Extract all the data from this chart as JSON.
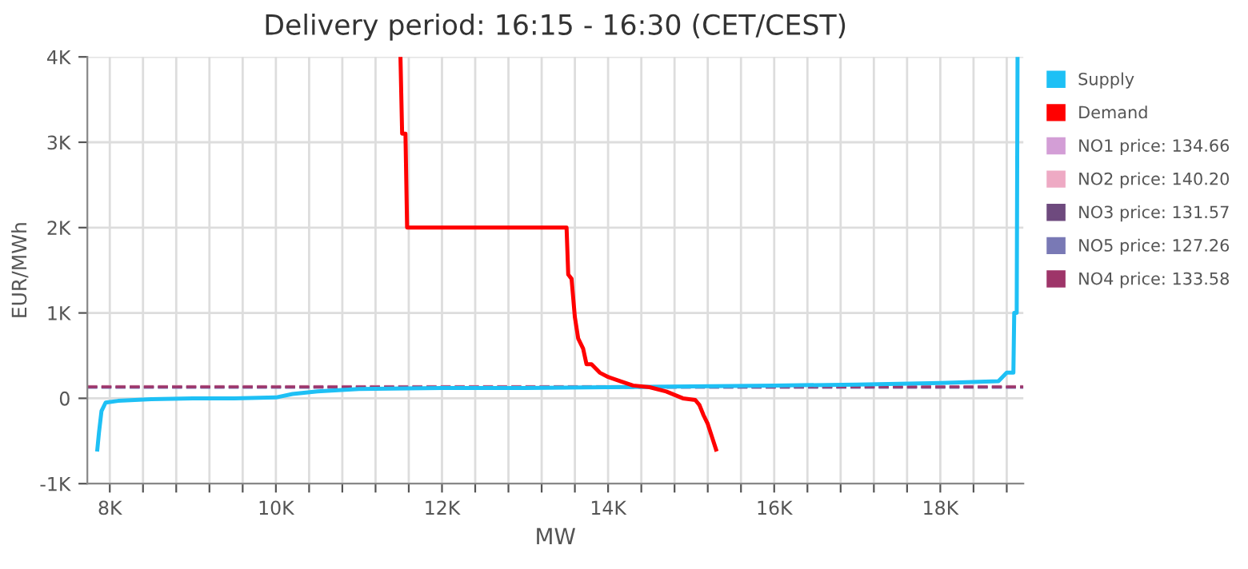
{
  "chart_data": {
    "type": "line",
    "title": "Delivery period: 16:15 - 16:30 (CET/CEST)",
    "xlabel": "MW",
    "ylabel": "EUR/MWh",
    "xlim": [
      7730,
      19000
    ],
    "ylim": [
      -1000,
      4000
    ],
    "xticks": [
      {
        "value": 8000,
        "label": "8K"
      },
      {
        "value": 8400,
        "label": null
      },
      {
        "value": 8800,
        "label": null
      },
      {
        "value": 9200,
        "label": null
      },
      {
        "value": 9600,
        "label": null
      },
      {
        "value": 10000,
        "label": "10K"
      },
      {
        "value": 10400,
        "label": null
      },
      {
        "value": 10800,
        "label": null
      },
      {
        "value": 11200,
        "label": null
      },
      {
        "value": 11600,
        "label": null
      },
      {
        "value": 12000,
        "label": "12K"
      },
      {
        "value": 12400,
        "label": null
      },
      {
        "value": 12800,
        "label": null
      },
      {
        "value": 13200,
        "label": null
      },
      {
        "value": 13600,
        "label": null
      },
      {
        "value": 14000,
        "label": "14K"
      },
      {
        "value": 14400,
        "label": null
      },
      {
        "value": 14800,
        "label": null
      },
      {
        "value": 15200,
        "label": null
      },
      {
        "value": 15600,
        "label": null
      },
      {
        "value": 16000,
        "label": "16K"
      },
      {
        "value": 16400,
        "label": null
      },
      {
        "value": 16800,
        "label": null
      },
      {
        "value": 17200,
        "label": null
      },
      {
        "value": 17600,
        "label": null
      },
      {
        "value": 18000,
        "label": "18K"
      },
      {
        "value": 18400,
        "label": null
      },
      {
        "value": 18800,
        "label": null
      }
    ],
    "yticks": [
      {
        "value": -1000,
        "label": "-1K"
      },
      0,
      {
        "value": 1000,
        "label": "1K"
      },
      {
        "value": 2000,
        "label": "2K"
      },
      {
        "value": 3000,
        "label": "3K"
      },
      {
        "value": 4000,
        "label": "4K"
      }
    ],
    "grid": true,
    "legend": "right",
    "marker": "none",
    "line_style": "solid",
    "series": [
      {
        "name": "Supply",
        "color": "#1ec0f5",
        "x": [
          7850,
          7870,
          7900,
          7950,
          8100,
          8500,
          9000,
          9500,
          10000,
          10200,
          10500,
          11000,
          12000,
          13000,
          14000,
          15000,
          16000,
          17000,
          18000,
          18700,
          18800,
          18880,
          18890,
          18920,
          18930
        ],
        "values": [
          -600,
          -400,
          -150,
          -50,
          -30,
          -10,
          0,
          0,
          10,
          50,
          80,
          110,
          120,
          120,
          130,
          140,
          150,
          160,
          180,
          200,
          300,
          300,
          1000,
          1000,
          4000
        ]
      },
      {
        "name": "Demand",
        "color": "#ff0000",
        "x": [
          11500,
          11520,
          11560,
          11580,
          13500,
          13520,
          13560,
          13600,
          13640,
          13700,
          13740,
          13800,
          13850,
          13900,
          14000,
          14150,
          14300,
          14500,
          14700,
          14900,
          15050,
          15100,
          15150,
          15200,
          15250,
          15300
        ],
        "values": [
          4000,
          3100,
          3100,
          2000,
          2000,
          1450,
          1400,
          950,
          700,
          580,
          400,
          400,
          350,
          300,
          250,
          200,
          150,
          130,
          80,
          0,
          -20,
          -80,
          -200,
          -300,
          -450,
          -600
        ]
      }
    ],
    "ref_lines": [
      {
        "axis": "y",
        "value": 134.66,
        "label": "NO1 price: 134.66",
        "color": "#d39ed6",
        "line_style": "dashed"
      },
      {
        "axis": "y",
        "value": 140.2,
        "label": "NO2 price: 140.20",
        "color": "#eeaac4",
        "line_style": "dashed"
      },
      {
        "axis": "y",
        "value": 131.57,
        "label": "NO3 price: 131.57",
        "color": "#6e4a7e",
        "line_style": "dashed"
      },
      {
        "axis": "y",
        "value": 127.26,
        "label": "NO5 price: 127.26",
        "color": "#7979b5",
        "line_style": "dashed"
      },
      {
        "axis": "y",
        "value": 133.58,
        "label": "NO4 price: 133.58",
        "color": "#9e3569",
        "line_style": "dashed"
      }
    ]
  }
}
